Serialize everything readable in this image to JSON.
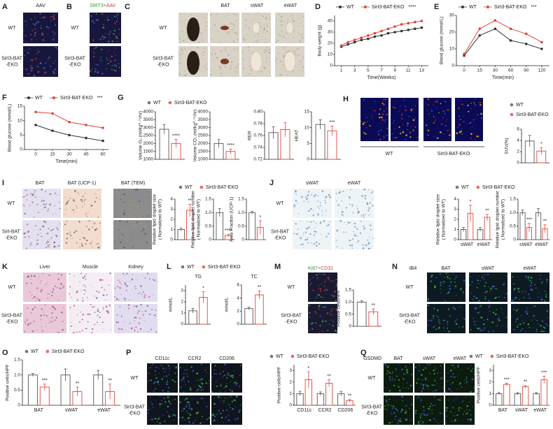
{
  "figure": {
    "panels": [
      {
        "label": "A",
        "headers": [
          {
            "text": "AAV",
            "color": "#d23c3c"
          }
        ],
        "rows": [
          [
            "WT"
          ],
          [
            "Sirt3-BAT",
            "-EKO"
          ]
        ]
      },
      {
        "label": "B",
        "headers": [
          {
            "text": "SIRT3",
            "color": "#2a9d2a"
          },
          {
            "text": "+AAV",
            "color": "#d23c3c"
          }
        ],
        "rows": [
          [
            "WT"
          ],
          [
            "Sirt3-BAT",
            "-EKO"
          ]
        ]
      },
      {
        "label": "C",
        "headers": [
          {
            "text": "BAT",
            "color": "#222222"
          },
          {
            "text": "sWAT",
            "color": "#222222"
          },
          {
            "text": "eWAT",
            "color": "#222222"
          }
        ],
        "rows": [
          [
            "WT"
          ],
          [
            "Sirt3-BAT",
            "-EKO"
          ]
        ]
      },
      {
        "label": "H",
        "captions": [
          "WT",
          "Sirt3-BAT-EKO"
        ]
      },
      {
        "label": "I",
        "headers": [
          {
            "text": "BAT",
            "color": "#222222"
          },
          {
            "text": "BAT (UCP-1)",
            "color": "#222222"
          },
          {
            "text": "BAT (TEM)",
            "color": "#222222"
          }
        ],
        "rows": [
          [
            "WT"
          ],
          [
            "Sirt-BAT",
            "-EKO"
          ]
        ]
      },
      {
        "label": "J",
        "headers": [
          {
            "text": "sWAT",
            "color": "#222222"
          },
          {
            "text": "eWAT",
            "color": "#222222"
          }
        ],
        "rows": [
          [
            "WT"
          ],
          [
            "Sirt-BAT",
            "-EKO"
          ]
        ]
      },
      {
        "label": "K",
        "headers": [
          {
            "text": "Liver",
            "color": "#222222"
          },
          {
            "text": "Muscle",
            "color": "#222222"
          },
          {
            "text": "Kidney",
            "color": "#222222"
          }
        ],
        "rows": [
          [
            "WT"
          ],
          [
            "Sirt3-BAT",
            "-EKO"
          ]
        ]
      },
      {
        "label": "M",
        "headers": [
          {
            "text": "Ki67",
            "color": "#2a9d2a"
          },
          {
            "text": "+CD31",
            "color": "#d23c3c"
          }
        ],
        "rows": [
          [
            "WT"
          ],
          [
            "Sirt3-BAT",
            "-EKO"
          ]
        ]
      },
      {
        "label": "N",
        "headers": [
          {
            "text": "IB4",
            "color": "#2a9d2a"
          },
          {
            "text": "BAT",
            "color": "#222222"
          },
          {
            "text": "sWAT",
            "color": "#222222"
          },
          {
            "text": "eWAT",
            "color": "#222222"
          }
        ],
        "rows": [
          [
            "WT"
          ],
          [
            "Sirt3-BAT",
            "-EKO"
          ]
        ]
      },
      {
        "label": "P",
        "headers": [
          {
            "text": "CD11c",
            "color": "#2a9d2a"
          },
          {
            "text": "CCR2",
            "color": "#2a9d2a"
          },
          {
            "text": "CD206",
            "color": "#2a9d2a"
          }
        ],
        "rows": [
          [
            "WT"
          ],
          [
            "Sirt3-BAT",
            "-EKO"
          ]
        ]
      },
      {
        "label": "Q",
        "headers": [
          {
            "text": "GSDMD",
            "color": "#2a9d2a"
          },
          {
            "text": "BAT",
            "color": "#222222"
          },
          {
            "text": "sWAT",
            "color": "#222222"
          },
          {
            "text": "eWAT",
            "color": "#222222"
          }
        ],
        "rows": [
          [
            "WT"
          ],
          [
            "Sirt3-BAT",
            "-EKO"
          ]
        ]
      }
    ]
  },
  "chart_data": [
    {
      "type": "line",
      "label": "D",
      "ylabel": "Body weight (g)",
      "xlabel": "Time(Weeks)",
      "annotation": "****",
      "x": [
        1,
        2,
        3,
        4,
        5,
        6,
        7,
        8,
        9,
        10,
        11,
        12,
        13
      ],
      "xlim": [
        0,
        14
      ],
      "xticks": [
        1,
        3,
        5,
        7,
        9,
        11,
        13
      ],
      "ylim": [
        0,
        45
      ],
      "yticks": [
        0,
        10,
        20,
        30,
        40
      ],
      "series": [
        {
          "name": "WT",
          "color": "#333333",
          "values": [
            17,
            19,
            21,
            23,
            24,
            26,
            27,
            29,
            30,
            31,
            32,
            33,
            34
          ]
        },
        {
          "name": "Sirt3-BAT-EKO",
          "color": "#e0443a",
          "values": [
            18,
            21,
            23,
            25,
            27,
            29,
            31,
            33,
            35,
            37,
            38,
            39,
            40
          ]
        }
      ]
    },
    {
      "type": "line",
      "label": "E",
      "ylabel": "Blood glucose (mmol/L)",
      "xlabel": "Time(min)",
      "annotation": "***",
      "categories": [
        "0",
        "15",
        "30",
        "60",
        "90",
        "120"
      ],
      "ylim": [
        0,
        30
      ],
      "yticks": [
        0,
        10,
        20,
        30
      ],
      "series": [
        {
          "name": "WT",
          "color": "#333333",
          "values": [
            6,
            18,
            22,
            15,
            13,
            10
          ]
        },
        {
          "name": "Sirt3-BAT-EKO",
          "color": "#e0443a",
          "values": [
            7,
            22,
            27,
            22,
            19,
            14
          ]
        }
      ]
    },
    {
      "type": "line",
      "label": "F",
      "ylabel": "Blood glucose (mmol/L)",
      "xlabel": "Time(min)",
      "annotation": "***",
      "x": [
        0,
        15,
        30,
        45,
        60
      ],
      "xlim": [
        -10,
        65
      ],
      "xticks": [
        0,
        15,
        30,
        45,
        60
      ],
      "ylim": [
        0,
        15
      ],
      "yticks": [
        0,
        5,
        10,
        15
      ],
      "series": [
        {
          "name": "WT",
          "color": "#333333",
          "values": [
            8.5,
            6.5,
            5,
            4,
            3
          ]
        },
        {
          "name": "Sirt3-BAT-EKO",
          "color": "#e0443a",
          "values": [
            13,
            12.5,
            9.5,
            8.5,
            7.5
          ]
        }
      ]
    },
    {
      "type": "bar",
      "label": "G",
      "ylabel": "Volume O₂ (ml/kg⁰·⁷⁵/hr)",
      "categories": [
        null
      ],
      "annotations": [
        "****"
      ],
      "ylim": [
        1000,
        4000
      ],
      "yticks": [
        1000,
        1500,
        2000,
        2500,
        3000,
        3500,
        4000
      ],
      "series": [
        {
          "name": "WT",
          "color": "#555555",
          "values": [
            2900
          ],
          "errors": [
            300
          ]
        },
        {
          "name": "Sirt3-BAT-EKO",
          "color": "#e0443a",
          "values": [
            2000
          ],
          "errors": [
            250
          ]
        }
      ]
    },
    {
      "type": "bar",
      "ylabel": "Volume CO₂ (ml/kg⁰·⁷⁵/hr)",
      "categories": [
        null
      ],
      "annotations": [
        "****"
      ],
      "ylim": [
        1000,
        4000
      ],
      "yticks": [
        1000,
        1500,
        2000,
        2500,
        3000,
        3500,
        4000
      ],
      "series": [
        {
          "color": "#555555",
          "values": [
            2000
          ],
          "errors": [
            250
          ]
        },
        {
          "color": "#e0443a",
          "values": [
            1500
          ],
          "errors": [
            150
          ]
        }
      ]
    },
    {
      "type": "bar",
      "ylabel": "RER",
      "categories": [
        null
      ],
      "ylim": [
        0.72,
        0.8
      ],
      "yticks": [
        0.72,
        0.74,
        0.76,
        0.78,
        {
          "value": 0.8,
          "label": "0.80"
        }
      ],
      "series": [
        {
          "color": "#555555",
          "values": [
            0.765
          ],
          "errors": [
            0.01
          ]
        },
        {
          "color": "#e0443a",
          "values": [
            0.77
          ],
          "errors": [
            0.012
          ]
        }
      ]
    },
    {
      "type": "bar",
      "ylabel": "HEAT",
      "categories": [
        null
      ],
      "annotations": [
        "***"
      ],
      "ylim": [
        0,
        15
      ],
      "yticks": [
        0,
        5,
        10,
        15
      ],
      "series": [
        {
          "color": "#555555",
          "values": [
            11
          ],
          "errors": [
            1.5
          ]
        },
        {
          "color": "#e0443a",
          "values": [
            9
          ],
          "errors": [
            1.5
          ]
        }
      ]
    },
    {
      "type": "bar",
      "ylabel": "SUV(%)",
      "categories": [
        null
      ],
      "annotations": [
        "*"
      ],
      "ylim": [
        0,
        6
      ],
      "yticks": [
        0,
        2,
        4,
        6
      ],
      "series": [
        {
          "name": "WT",
          "color": "#555555",
          "values": [
            3.9
          ],
          "errors": [
            1
          ]
        },
        {
          "name": "Sirt3-BAT-EKO",
          "color": "#e0443a",
          "values": [
            2.1
          ],
          "errors": [
            0.6
          ]
        }
      ]
    },
    {
      "type": "bar",
      "ylabel": [
        "Relative lipid droplet size",
        "( Normalized to WT)"
      ],
      "categories": [
        null
      ],
      "annotations": [
        "**"
      ],
      "ylim": [
        0,
        4
      ],
      "yticks": [
        0,
        1,
        2,
        3,
        4
      ],
      "series": [
        {
          "name": "WT",
          "color": "#555555",
          "values": [
            1
          ],
          "errors": [
            0.15
          ]
        },
        {
          "name": "Sirt3-BAT-EKO",
          "color": "#e0443a",
          "values": [
            2.9
          ],
          "errors": [
            0.6
          ]
        }
      ]
    },
    {
      "type": "bar",
      "ylabel": [
        "Relative lipid droplet number",
        "( Normalized to WT)"
      ],
      "categories": [
        null
      ],
      "annotations": [
        "****"
      ],
      "ylim": [
        0,
        1.5
      ],
      "yticks": [
        0,
        0.5,
        {
          "value": 1,
          "label": "1.0"
        },
        1.5
      ],
      "series": [
        {
          "color": "#555555",
          "values": [
            1
          ],
          "errors": [
            0.15
          ]
        },
        {
          "color": "#e0443a",
          "values": [
            0.15
          ],
          "errors": [
            0.05
          ]
        }
      ]
    },
    {
      "type": "bar",
      "ylabel": "Area Fraction (UCP-1)",
      "categories": [
        null
      ],
      "annotations": [
        "*"
      ],
      "ylim": [
        0,
        1.5
      ],
      "yticks": [
        0,
        0.5,
        {
          "value": 1,
          "label": "1.0"
        },
        1.5
      ],
      "series": [
        {
          "color": "#555555",
          "values": [
            1
          ],
          "errors": [
            0.05
          ]
        },
        {
          "color": "#e0443a",
          "values": [
            0.45
          ],
          "errors": [
            0.25
          ]
        }
      ]
    },
    {
      "type": "bar",
      "ylabel": [
        "Relative lipid droplet size",
        "( Normalized to WT)"
      ],
      "categories": [
        "sWAT",
        "eWAT"
      ],
      "annotations": [
        "*",
        "**"
      ],
      "ylim": [
        0,
        4
      ],
      "yticks": [
        0,
        1,
        2,
        3,
        4
      ],
      "series": [
        {
          "name": "WT",
          "color": "#555555",
          "values": [
            1,
            1
          ],
          "errors": [
            0.2,
            0.2
          ]
        },
        {
          "name": "Sirt3-BAT-EKO",
          "color": "#e0443a",
          "values": [
            2.6,
            2.2
          ],
          "errors": [
            0.8,
            0.3
          ]
        }
      ]
    },
    {
      "type": "bar",
      "ylabel": [
        "Relative lipid droplet number",
        "( Normalized to WT)"
      ],
      "categories": [
        "sWAT",
        "eWAT"
      ],
      "annotations": [
        "***",
        "**"
      ],
      "ylim": [
        0,
        1.5
      ],
      "yticks": [
        0,
        0.5,
        {
          "value": 1,
          "label": "1.0"
        },
        1.5
      ],
      "series": [
        {
          "color": "#555555",
          "values": [
            1,
            1
          ],
          "errors": [
            0.1,
            0.15
          ]
        },
        {
          "color": "#e0443a",
          "values": [
            0.45,
            0.4
          ],
          "errors": [
            0.15,
            0.15
          ]
        }
      ]
    },
    {
      "type": "bar",
      "label": "L",
      "title": "TG",
      "ylabel": "mmol/L",
      "categories": [
        null
      ],
      "annotations": [
        "*"
      ],
      "ylim": [
        0,
        3.5
      ],
      "yticks": [
        0,
        1,
        2,
        3
      ],
      "series": [
        {
          "name": "WT",
          "color": "#555555",
          "values": [
            1.2
          ],
          "errors": [
            0.2
          ]
        },
        {
          "name": "Sirt3-BAT-EKO",
          "color": "#e0443a",
          "values": [
            2.4
          ],
          "errors": [
            0.5
          ]
        }
      ]
    },
    {
      "type": "bar",
      "title": "TC",
      "ylabel": "mmol/L",
      "categories": [
        null
      ],
      "annotations": [
        "**"
      ],
      "ylim": [
        0,
        6
      ],
      "yticks": [
        0,
        2,
        4,
        6
      ],
      "series": [
        {
          "color": "#555555",
          "values": [
            2.4
          ],
          "errors": [
            0.2
          ]
        },
        {
          "color": "#e0443a",
          "values": [
            4.5
          ],
          "errors": [
            0.6
          ]
        }
      ]
    },
    {
      "type": "bar",
      "ylabel": "Positive cells/HPF",
      "categories": [
        null
      ],
      "annotations": [
        "**"
      ],
      "ylim": [
        0,
        1.5
      ],
      "yticks": [
        0,
        0.5,
        {
          "value": 1,
          "label": "1.0"
        },
        1.5
      ],
      "series": [
        {
          "color": "#555555",
          "values": [
            1
          ],
          "errors": [
            0.05
          ]
        },
        {
          "color": "#e0443a",
          "values": [
            0.6
          ],
          "errors": [
            0.12
          ]
        }
      ]
    },
    {
      "type": "bar",
      "label": "O",
      "ylabel": "Positive cells/HPF",
      "categories": [
        "BAT",
        "sWAT",
        "eWAT"
      ],
      "annotations": [
        "***",
        "**",
        "**"
      ],
      "ylim": [
        0,
        1.5
      ],
      "yticks": [
        0,
        0.5,
        {
          "value": 1,
          "label": "1.0"
        },
        1.5
      ],
      "series": [
        {
          "name": "WT",
          "color": "#555555",
          "values": [
            1,
            1,
            1
          ],
          "errors": [
            0.05,
            0.2,
            0.15
          ]
        },
        {
          "name": "Sirt3-BAT-EKO",
          "color": "#e0443a",
          "values": [
            0.6,
            0.45,
            0.45
          ],
          "errors": [
            0.1,
            0.15,
            0.25
          ]
        }
      ]
    },
    {
      "type": "bar",
      "ylabel": "Positive cells/HPF",
      "categories": [
        "CD11c",
        "CCR2",
        "CD206"
      ],
      "annotations": [
        "*",
        "**",
        "**"
      ],
      "ylim": [
        0,
        3.5
      ],
      "yticks": [
        0,
        1,
        2,
        3
      ],
      "series": [
        {
          "name": "WT",
          "color": "#555555",
          "values": [
            1,
            1,
            1
          ],
          "errors": [
            0.2,
            0.15,
            0.2
          ]
        },
        {
          "name": "Sirt3-BAT-EKO",
          "color": "#e0443a",
          "values": [
            2.2,
            1.9,
            0.4
          ],
          "errors": [
            0.7,
            0.3,
            0.1
          ]
        }
      ]
    },
    {
      "type": "bar",
      "ylabel": "Positive cells/HPF",
      "categories": [
        "BAT",
        "sWAT",
        "eWAT"
      ],
      "annotations": [
        "***",
        "**",
        "***"
      ],
      "ylim": [
        0,
        3.5
      ],
      "yticks": [
        0,
        1,
        2,
        3
      ],
      "series": [
        {
          "name": "WT",
          "color": "#555555",
          "values": [
            1,
            1,
            1
          ],
          "errors": [
            0.1,
            0.1,
            0.1
          ]
        },
        {
          "name": "Sirt3-BAT-EKO",
          "color": "#e0443a",
          "values": [
            1.8,
            1.6,
            2.2
          ],
          "errors": [
            0.1,
            0.1,
            0.3
          ]
        }
      ]
    }
  ]
}
